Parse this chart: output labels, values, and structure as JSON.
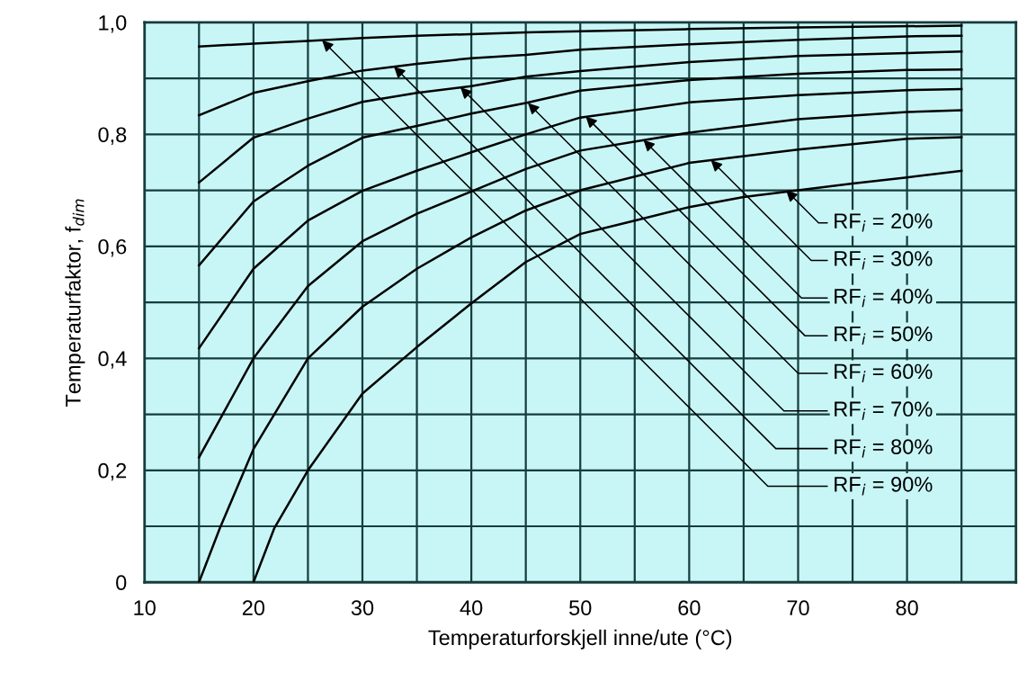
{
  "chart_data": {
    "type": "line",
    "xlabel": "Temperaturforskjell inne/ute (°C)",
    "ylabel": "Temperaturfaktor, f$_{dim}$",
    "xlim": [
      10,
      90
    ],
    "ylim": [
      0,
      1
    ],
    "xticks": [
      10,
      {
        "value": 15,
        "label": null
      },
      20,
      {
        "value": 25,
        "label": null
      },
      30,
      {
        "value": 35,
        "label": null
      },
      40,
      {
        "value": 45,
        "label": null
      },
      50,
      {
        "value": 55,
        "label": null
      },
      60,
      {
        "value": 65,
        "label": null
      },
      70,
      {
        "value": 75,
        "label": null
      },
      80,
      {
        "value": 85,
        "label": null
      }
    ],
    "yticks": [
      {
        "value": 0,
        "label": "0"
      },
      {
        "value": 0.1,
        "label": null
      },
      {
        "value": 0.2,
        "label": "0,2"
      },
      {
        "value": 0.3,
        "label": null
      },
      {
        "value": 0.4,
        "label": "0,4"
      },
      {
        "value": 0.5,
        "label": null
      },
      {
        "value": 0.6,
        "label": "0,6"
      },
      {
        "value": 0.7,
        "label": null
      },
      {
        "value": 0.8,
        "label": "0,8"
      },
      {
        "value": 0.9,
        "label": null
      },
      {
        "value": 1.0,
        "label": "1,0"
      }
    ],
    "grid": true,
    "legend": false,
    "marker": "none",
    "line_style": "solid",
    "series": [
      {
        "color": "#000000",
        "x": [
          20,
          21.9,
          25,
          30,
          35,
          40,
          45,
          50,
          55,
          60,
          65,
          70,
          75,
          80,
          85
        ],
        "values": [
          0,
          0.096,
          0.2,
          0.337,
          0.42,
          0.498,
          0.572,
          0.622,
          0.646,
          0.67,
          0.688,
          0.7,
          0.712,
          0.723,
          0.735
        ]
      },
      {
        "color": "#000000",
        "x": [
          15,
          16.9,
          20,
          25,
          30,
          35,
          40,
          45,
          50,
          60,
          70,
          80,
          85
        ],
        "values": [
          0,
          0.096,
          0.238,
          0.4,
          0.492,
          0.56,
          0.616,
          0.664,
          0.7,
          0.749,
          0.773,
          0.792,
          0.795
        ]
      },
      {
        "color": "#000000",
        "x": [
          15,
          20,
          25,
          30,
          35,
          40,
          45,
          50,
          60,
          70,
          80,
          85
        ],
        "values": [
          0.223,
          0.4,
          0.529,
          0.609,
          0.658,
          0.698,
          0.738,
          0.771,
          0.803,
          0.827,
          0.84,
          0.843
        ]
      },
      {
        "color": "#000000",
        "x": [
          15,
          20,
          25,
          30,
          35,
          40,
          45,
          50,
          60,
          70,
          80,
          85
        ],
        "values": [
          0.418,
          0.56,
          0.646,
          0.699,
          0.735,
          0.768,
          0.8,
          0.83,
          0.857,
          0.87,
          0.879,
          0.881
        ]
      },
      {
        "color": "#000000",
        "x": [
          15,
          20,
          25,
          30,
          35,
          40,
          45,
          50,
          60,
          70,
          80,
          85
        ],
        "values": [
          0.566,
          0.68,
          0.744,
          0.794,
          0.815,
          0.837,
          0.856,
          0.878,
          0.897,
          0.908,
          0.915,
          0.916
        ]
      },
      {
        "color": "#000000",
        "x": [
          15,
          20,
          25,
          30,
          35,
          40,
          45,
          50,
          60,
          70,
          80,
          85
        ],
        "values": [
          0.714,
          0.794,
          0.828,
          0.858,
          0.874,
          0.886,
          0.903,
          0.913,
          0.929,
          0.94,
          0.945,
          0.948
        ]
      },
      {
        "color": "#000000",
        "x": [
          15,
          20,
          25,
          30,
          35,
          40,
          45,
          50,
          60,
          70,
          80,
          85
        ],
        "values": [
          0.834,
          0.874,
          0.895,
          0.914,
          0.926,
          0.936,
          0.942,
          0.951,
          0.961,
          0.969,
          0.975,
          0.976
        ]
      },
      {
        "color": "#000000",
        "x": [
          15,
          20,
          25,
          30,
          35,
          40,
          45,
          50,
          60,
          70,
          85
        ],
        "values": [
          0.957,
          0.962,
          0.967,
          0.972,
          0.976,
          0.979,
          0.982,
          0.984,
          0.988,
          0.991,
          0.994
        ]
      }
    ],
    "annotations": [
      {
        "text": "RF$_{i}$ = 20%",
        "x": 68.9,
        "y": 0.7
      },
      {
        "text": "RF$_{i}$ = 30%",
        "x": 62,
        "y": 0.754
      },
      {
        "text": "RF$_{i}$ = 40%",
        "x": 55.8,
        "y": 0.79
      },
      {
        "text": "RF$_{i}$ = 50%",
        "x": 50.5,
        "y": 0.832
      },
      {
        "text": "RF$_{i}$ = 60%",
        "x": 45.2,
        "y": 0.856
      },
      {
        "text": "RF$_{i}$ = 70%",
        "x": 39,
        "y": 0.884
      },
      {
        "text": "RF$_{i}$ = 80%",
        "x": 32.9,
        "y": 0.921
      },
      {
        "text": "RF$_{i}$ = 90%",
        "x": 26.3,
        "y": 0.968
      }
    ]
  }
}
